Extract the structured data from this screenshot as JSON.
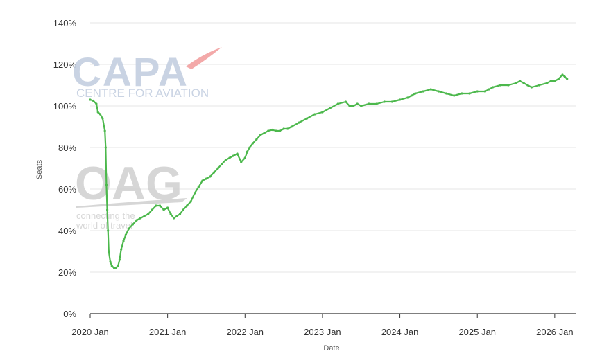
{
  "watermarks": {
    "capa_name": "CAPA",
    "capa_sub": "CENTRE FOR AVIATION",
    "oag_name": "OAG",
    "oag_line1": "connecting the",
    "oag_line2": "world of travel",
    "colors": {
      "capa": "#c4cfe0",
      "oag": "#d2d2d2",
      "accent": "#f2a0a0"
    }
  },
  "chart_data": {
    "type": "line",
    "xlabel": "Date",
    "ylabel": "Seats",
    "ylim": [
      0,
      140
    ],
    "yticks": [
      0,
      20,
      40,
      60,
      80,
      100,
      120,
      140
    ],
    "ytick_labels": [
      "0%",
      "20%",
      "40%",
      "60%",
      "80%",
      "100%",
      "120%",
      "140%"
    ],
    "xlim": [
      2020.0,
      2026.27
    ],
    "xticks": [
      2020,
      2021,
      2022,
      2023,
      2024,
      2025,
      2026
    ],
    "xtick_labels": [
      "2020 Jan",
      "2021 Jan",
      "2022 Jan",
      "2023 Jan",
      "2024 Jan",
      "2025 Jan",
      "2026 Jan"
    ],
    "grid": true,
    "line_color": "#4cb84c",
    "series": [
      {
        "x": [
          2020.0,
          2020.04,
          2020.08,
          2020.1,
          2020.13,
          2020.16,
          2020.19,
          2020.2,
          2020.21,
          2020.22,
          2020.23,
          2020.24,
          2020.26,
          2020.28,
          2020.31,
          2020.33,
          2020.36,
          2020.38,
          2020.4,
          2020.43,
          2020.46,
          2020.5,
          2020.55,
          2020.6,
          2020.65,
          2020.7,
          2020.75,
          2020.8,
          2020.85,
          2020.9,
          2020.95,
          2021.0,
          2021.04,
          2021.08,
          2021.12,
          2021.16,
          2021.2,
          2021.25,
          2021.3,
          2021.35,
          2021.4,
          2021.45,
          2021.5,
          2021.55,
          2021.6,
          2021.65,
          2021.7,
          2021.75,
          2021.8,
          2021.85,
          2021.9,
          2021.95,
          2022.0,
          2022.03,
          2022.06,
          2022.1,
          2022.15,
          2022.2,
          2022.25,
          2022.3,
          2022.35,
          2022.4,
          2022.45,
          2022.5,
          2022.55,
          2022.6,
          2022.7,
          2022.8,
          2022.9,
          2023.0,
          2023.1,
          2023.2,
          2023.3,
          2023.35,
          2023.4,
          2023.45,
          2023.5,
          2023.6,
          2023.7,
          2023.8,
          2023.9,
          2024.0,
          2024.1,
          2024.15,
          2024.2,
          2024.3,
          2024.4,
          2024.5,
          2024.6,
          2024.7,
          2024.8,
          2024.9,
          2025.0,
          2025.1,
          2025.15,
          2025.2,
          2025.3,
          2025.4,
          2025.5,
          2025.55,
          2025.6,
          2025.65,
          2025.7,
          2025.8,
          2025.9,
          2025.95,
          2026.0,
          2026.05,
          2026.1,
          2026.13,
          2026.16
        ],
        "y": [
          103,
          102.5,
          101,
          97,
          96,
          94,
          88,
          80,
          62,
          50,
          40,
          30,
          25,
          23,
          22,
          22,
          23,
          26,
          31,
          35,
          38,
          41,
          43,
          45,
          46,
          47,
          48,
          50,
          52,
          52,
          50,
          51,
          48,
          46,
          47,
          48,
          50,
          52,
          54,
          58,
          61,
          64,
          65,
          66,
          68,
          70,
          72,
          74,
          75,
          76,
          77,
          73,
          75,
          78,
          80,
          82,
          84,
          86,
          87,
          88,
          88.5,
          88,
          88,
          89,
          89,
          90,
          92,
          94,
          96,
          97,
          99,
          101,
          102,
          100,
          100,
          101,
          100,
          101,
          101,
          102,
          102,
          103,
          104,
          105,
          106,
          107,
          108,
          107,
          106,
          105,
          106,
          106,
          107,
          107,
          108,
          109,
          110,
          110,
          111,
          112,
          111,
          110,
          109,
          110,
          111,
          112,
          112,
          113,
          115,
          114,
          113
        ]
      }
    ]
  }
}
